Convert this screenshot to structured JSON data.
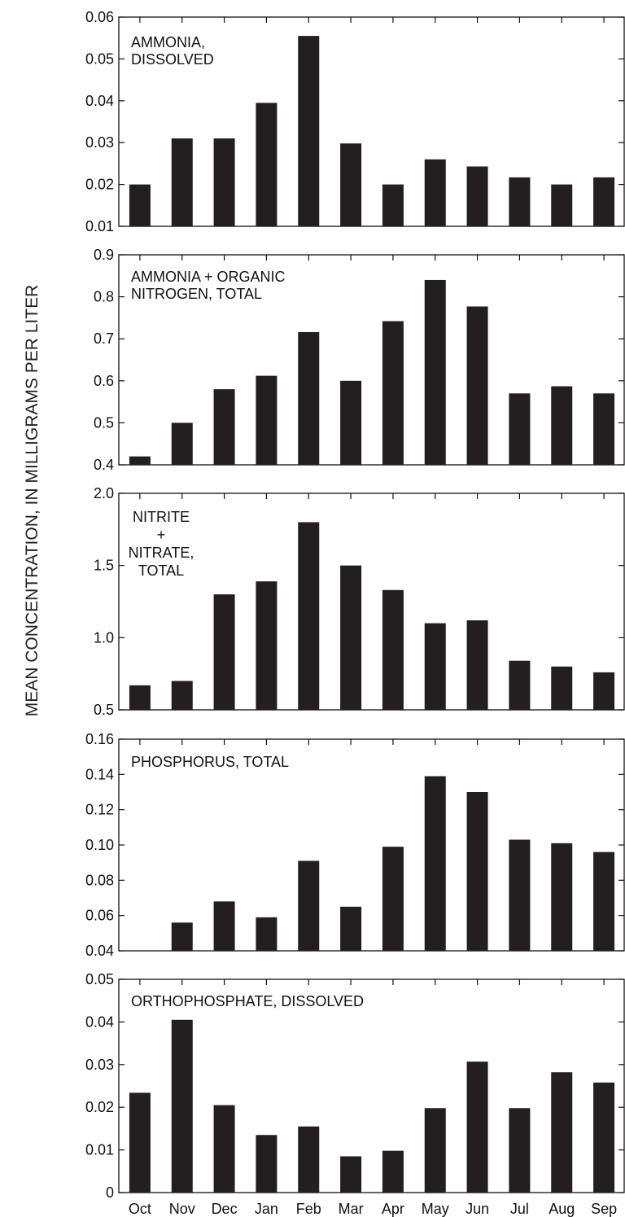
{
  "figure": {
    "ylabel": "MEAN CONCENTRATION, IN MILLIGRAMS PER LITER"
  },
  "chart_data": [
    {
      "type": "bar",
      "title": "AMMONIA,\nDISSOLVED",
      "categories": [
        "Oct",
        "Nov",
        "Dec",
        "Jan",
        "Feb",
        "Mar",
        "Apr",
        "May",
        "Jun",
        "Jul",
        "Aug",
        "Sep"
      ],
      "values": [
        0.02,
        0.031,
        0.031,
        0.0395,
        0.0555,
        0.0298,
        0.02,
        0.026,
        0.0243,
        0.0217,
        0.02,
        0.0217
      ],
      "ylim": [
        0.01,
        0.06
      ],
      "yticks": [
        0.01,
        0.02,
        0.03,
        0.04,
        0.05,
        0.06
      ],
      "ytick_labels": [
        "0.01",
        "0.02",
        "0.03",
        "0.04",
        "0.05",
        "0.06"
      ],
      "xlabel": "",
      "ylabel": ""
    },
    {
      "type": "bar",
      "title": "AMMONIA + ORGANIC\nNITROGEN, TOTAL",
      "categories": [
        "Oct",
        "Nov",
        "Dec",
        "Jan",
        "Feb",
        "Mar",
        "Apr",
        "May",
        "Jun",
        "Jul",
        "Aug",
        "Sep"
      ],
      "values": [
        0.42,
        0.5,
        0.58,
        0.612,
        0.716,
        0.6,
        0.742,
        0.84,
        0.777,
        0.57,
        0.587,
        0.57
      ],
      "ylim": [
        0.4,
        0.9
      ],
      "yticks": [
        0.4,
        0.5,
        0.6,
        0.7,
        0.8,
        0.9
      ],
      "ytick_labels": [
        "0.4",
        "0.5",
        "0.6",
        "0.7",
        "0.8",
        "0.9"
      ],
      "xlabel": "",
      "ylabel": ""
    },
    {
      "type": "bar",
      "title": "NITRITE\n+\nNITRATE,\nTOTAL",
      "categories": [
        "Oct",
        "Nov",
        "Dec",
        "Jan",
        "Feb",
        "Mar",
        "Apr",
        "May",
        "Jun",
        "Jul",
        "Aug",
        "Sep"
      ],
      "values": [
        0.67,
        0.7,
        1.3,
        1.39,
        1.8,
        1.5,
        1.33,
        1.1,
        1.12,
        0.84,
        0.8,
        0.76
      ],
      "ylim": [
        0.5,
        2.0
      ],
      "yticks": [
        0.5,
        1.0,
        1.5,
        2.0
      ],
      "ytick_labels": [
        "0.5",
        "1.0",
        "1.5",
        "2.0"
      ],
      "xlabel": "",
      "ylabel": ""
    },
    {
      "type": "bar",
      "title": "PHOSPHORUS, TOTAL",
      "categories": [
        "Oct",
        "Nov",
        "Dec",
        "Jan",
        "Feb",
        "Mar",
        "Apr",
        "May",
        "Jun",
        "Jul",
        "Aug",
        "Sep"
      ],
      "values": [
        0.04,
        0.056,
        0.068,
        0.059,
        0.091,
        0.065,
        0.099,
        0.139,
        0.13,
        0.103,
        0.101,
        0.096
      ],
      "ylim": [
        0.04,
        0.16
      ],
      "yticks": [
        0.04,
        0.06,
        0.08,
        0.1,
        0.12,
        0.14,
        0.16
      ],
      "ytick_labels": [
        "0.04",
        "0.06",
        "0.08",
        "0.10",
        "0.12",
        "0.14",
        "0.16"
      ],
      "xlabel": "",
      "ylabel": ""
    },
    {
      "type": "bar",
      "title": "ORTHOPHOSPHATE, DISSOLVED",
      "categories": [
        "Oct",
        "Nov",
        "Dec",
        "Jan",
        "Feb",
        "Mar",
        "Apr",
        "May",
        "Jun",
        "Jul",
        "Aug",
        "Sep"
      ],
      "values": [
        0.0234,
        0.0405,
        0.0205,
        0.0135,
        0.0155,
        0.0085,
        0.0098,
        0.0198,
        0.0307,
        0.0198,
        0.0282,
        0.0258
      ],
      "ylim": [
        0,
        0.05
      ],
      "yticks": [
        0,
        0.01,
        0.02,
        0.03,
        0.04,
        0.05
      ],
      "ytick_labels": [
        "0",
        "0.01",
        "0.02",
        "0.03",
        "0.04",
        "0.05"
      ],
      "show_xtick_labels": true,
      "xlabel": "",
      "ylabel": ""
    }
  ]
}
